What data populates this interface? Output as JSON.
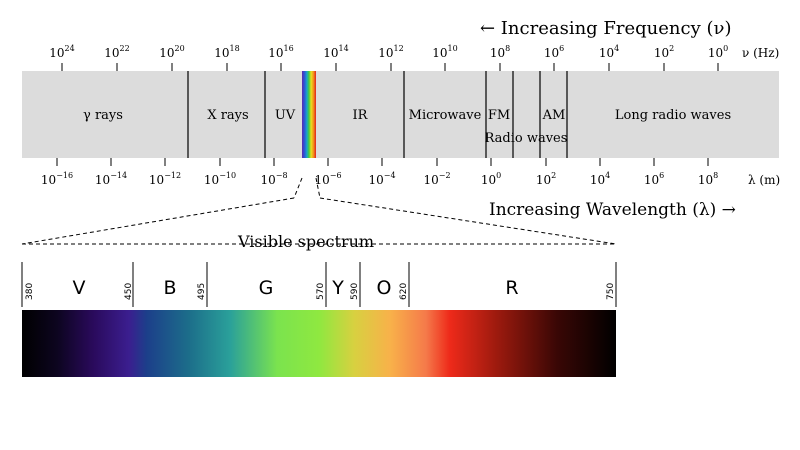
{
  "frequency_direction_label": "← Increasing Frequency (ν)",
  "wavelength_direction_label": "Increasing Wavelength (λ) →",
  "frequency_axis": {
    "unit_label": "ν (Hz)",
    "ticks": [
      {
        "base": "10",
        "exp": "24"
      },
      {
        "base": "10",
        "exp": "22"
      },
      {
        "base": "10",
        "exp": "20"
      },
      {
        "base": "10",
        "exp": "18"
      },
      {
        "base": "10",
        "exp": "16"
      },
      {
        "base": "10",
        "exp": "14"
      },
      {
        "base": "10",
        "exp": "12"
      },
      {
        "base": "10",
        "exp": "10"
      },
      {
        "base": "10",
        "exp": "8"
      },
      {
        "base": "10",
        "exp": "6"
      },
      {
        "base": "10",
        "exp": "4"
      },
      {
        "base": "10",
        "exp": "2"
      },
      {
        "base": "10",
        "exp": "0"
      }
    ]
  },
  "wavelength_axis": {
    "unit_label": "λ (m)",
    "ticks": [
      {
        "base": "10",
        "exp": "−16"
      },
      {
        "base": "10",
        "exp": "−14"
      },
      {
        "base": "10",
        "exp": "−12"
      },
      {
        "base": "10",
        "exp": "−10"
      },
      {
        "base": "10",
        "exp": "−8"
      },
      {
        "base": "10",
        "exp": "−6"
      },
      {
        "base": "10",
        "exp": "−4"
      },
      {
        "base": "10",
        "exp": "−2"
      },
      {
        "base": "10",
        "exp": "0"
      },
      {
        "base": "10",
        "exp": "2"
      },
      {
        "base": "10",
        "exp": "4"
      },
      {
        "base": "10",
        "exp": "6"
      },
      {
        "base": "10",
        "exp": "8"
      }
    ]
  },
  "bands": {
    "gamma": "γ rays",
    "xray": "X rays",
    "uv": "UV",
    "ir": "IR",
    "microwave": "Microwave",
    "fm": "FM",
    "am": "AM",
    "radio": "Radio waves",
    "long_radio": "Long radio waves"
  },
  "band_background_color": "#dcdcdc",
  "visible_spectrum": {
    "title": "Visible spectrum",
    "nm_labels": [
      "380",
      "450",
      "495",
      "570",
      "590",
      "620",
      "750"
    ],
    "color_letters": [
      "V",
      "B",
      "G",
      "Y",
      "O",
      "R"
    ]
  }
}
